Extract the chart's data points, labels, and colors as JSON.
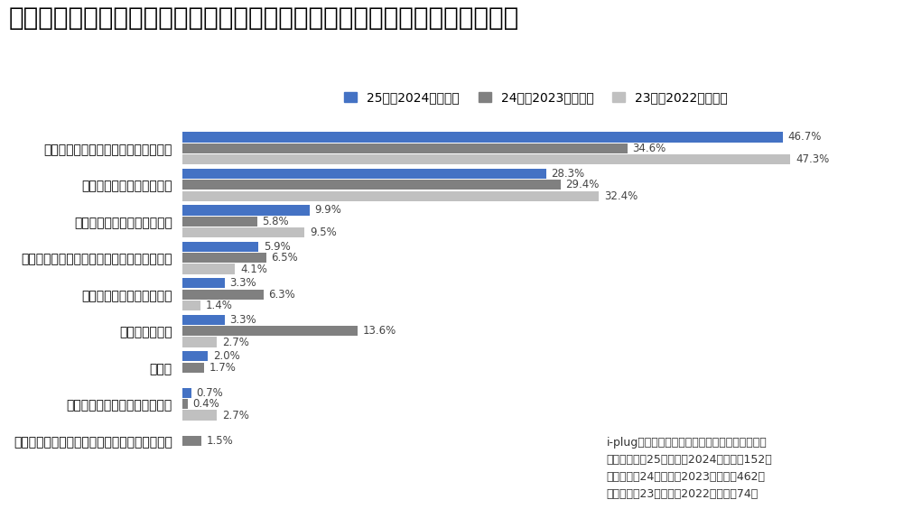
{
  "title": "地元に戻りたい、地元に住む理由として最も近いものを回答してください。",
  "categories": [
    "親や親戚、実家の近くに住みたいから",
    "地元の環境が魅力的だから",
    "地元の経済に貢献したいから",
    "物価が安いなどの金銭的メリットがあるから",
    "友達の近くに住みたいから",
    "特に理由はない",
    "その他",
    "地元に住む約束をしているから",
    "地元でしかできない仕事に就く予定があるから"
  ],
  "series": {
    "25卒（2024年調査）": [
      46.7,
      28.3,
      9.9,
      5.9,
      3.3,
      3.3,
      2.0,
      0.7,
      0.0
    ],
    "24卒（2023年調査）": [
      34.6,
      29.4,
      5.8,
      6.5,
      6.3,
      13.6,
      1.7,
      0.4,
      1.5
    ],
    "23卒（2022年調査）": [
      47.3,
      32.4,
      9.5,
      4.1,
      1.4,
      2.7,
      0.0,
      2.7,
      0.0
    ]
  },
  "colors": {
    "25卒（2024年調査）": "#4472C4",
    "24卒（2023年調査）": "#808080",
    "23卒（2022年調査）": "#C0C0C0"
  },
  "legend_labels": [
    "25卒（2024年調査）",
    "24卒（2023年調査）",
    "23卒（2022年調査）"
  ],
  "annotation_lines": [
    "i-plug調べ「就職活動状況に関するアンケート」",
    "有効回答数：25卒学生（2024年調査）152件",
    "　　　　　24卒学生（2023年調査）462件",
    "　　　　　23卒学生（2022年調査）74件"
  ],
  "title_fontsize": 20,
  "legend_fontsize": 10,
  "tick_fontsize": 10,
  "bar_fontsize": 8.5,
  "annotation_fontsize": 9,
  "background_color": "#FFFFFF",
  "xlim": [
    0,
    55
  ]
}
